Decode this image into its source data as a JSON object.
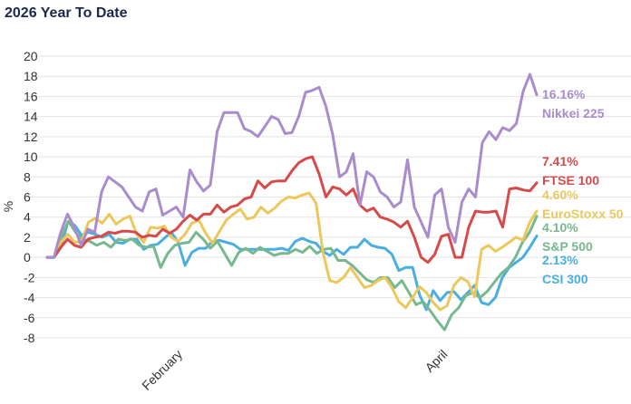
{
  "chart_data": {
    "type": "line",
    "title": "2026 Year To Date",
    "ylabel": "%",
    "xlabel": "",
    "ylim": [
      -8,
      20
    ],
    "yticks": [
      20,
      18,
      16,
      14,
      12,
      10,
      8,
      6,
      4,
      2,
      0,
      -2,
      -4,
      -6,
      -8
    ],
    "xlim": [
      0,
      72
    ],
    "xticks": [
      {
        "label": "February",
        "x": 20
      },
      {
        "label": "April",
        "x": 59
      }
    ],
    "grid": true,
    "legend_position": "right",
    "series": [
      {
        "name": "Nikkei 225",
        "last_label": "16.16%",
        "color": "#a98ccc",
        "values": [
          0.0,
          0.0,
          2.5,
          4.3,
          3.0,
          1.2,
          2.8,
          2.5,
          6.5,
          8.0,
          7.5,
          7.0,
          6.0,
          5.0,
          4.6,
          6.5,
          6.8,
          4.2,
          4.6,
          5.0,
          4.0,
          8.7,
          7.5,
          6.6,
          7.2,
          12.5,
          14.4,
          14.4,
          14.4,
          12.8,
          12.5,
          12.0,
          13.0,
          14.0,
          13.7,
          12.3,
          12.4,
          14.0,
          16.4,
          16.6,
          16.9,
          15.0,
          12.2,
          8.0,
          8.5,
          10.3,
          5.2,
          8.5,
          8.0,
          6.5,
          6.0,
          5.0,
          5.5,
          9.7,
          5.0,
          3.5,
          2.0,
          6.2,
          6.8,
          3.0,
          1.5,
          5.5,
          6.8,
          6.0,
          11.4,
          12.5,
          11.7,
          12.9,
          12.6,
          13.3,
          16.5,
          18.2,
          16.16
        ]
      },
      {
        "name": "FTSE 100",
        "last_label": "7.41%",
        "color": "#d64a4a",
        "values": [
          0.0,
          0.0,
          1.0,
          1.8,
          1.2,
          1.0,
          1.8,
          2.0,
          2.1,
          2.5,
          2.4,
          2.6,
          2.6,
          2.5,
          2.0,
          2.2,
          2.1,
          2.8,
          2.4,
          2.8,
          3.6,
          4.2,
          3.7,
          4.3,
          4.3,
          5.2,
          4.5,
          5.0,
          5.2,
          5.8,
          6.0,
          7.6,
          6.9,
          7.5,
          7.6,
          7.6,
          8.6,
          9.4,
          9.8,
          10.0,
          8.3,
          6.0,
          7.0,
          6.8,
          6.2,
          6.8,
          5.2,
          4.6,
          4.9,
          4.0,
          3.8,
          3.5,
          3.0,
          3.6,
          2.0,
          0.0,
          -0.5,
          0.3,
          2.1,
          2.3,
          0.0,
          0.0,
          3.0,
          4.6,
          4.5,
          4.5,
          4.6,
          3.0,
          6.8,
          6.9,
          6.7,
          6.6,
          7.41
        ]
      },
      {
        "name": "EuroStoxx 50",
        "last_label": "4.60%",
        "color": "#ecc85c",
        "values": [
          0.0,
          0.0,
          1.5,
          2.3,
          1.5,
          1.6,
          3.5,
          3.9,
          3.4,
          4.3,
          3.3,
          3.8,
          4.1,
          2.3,
          1.5,
          3.0,
          2.9,
          3.1,
          2.0,
          1.6,
          2.3,
          3.4,
          3.7,
          2.4,
          1.4,
          2.6,
          3.7,
          4.3,
          4.8,
          3.8,
          4.0,
          5.0,
          4.4,
          4.9,
          5.6,
          6.0,
          5.9,
          6.2,
          6.4,
          5.4,
          0.5,
          -2.3,
          -2.5,
          -2.0,
          -1.0,
          -2.0,
          -3.0,
          -2.8,
          -2.3,
          -2.0,
          -3.0,
          -4.4,
          -5.0,
          -4.0,
          -2.9,
          -3.5,
          -4.5,
          -5.2,
          -4.8,
          -2.8,
          -2.0,
          -2.4,
          -3.9,
          0.8,
          1.2,
          0.6,
          1.0,
          1.5,
          2.0,
          1.7,
          3.5,
          4.6
        ]
      },
      {
        "name": "S&P 500",
        "last_label": "4.10%",
        "color": "#78b88e",
        "values": [
          0.0,
          0.0,
          2.1,
          3.6,
          2.5,
          1.8,
          1.6,
          1.2,
          1.5,
          1.0,
          1.8,
          1.7,
          1.8,
          1.2,
          1.0,
          1.1,
          -1.0,
          0.4,
          1.2,
          1.4,
          1.5,
          2.5,
          1.8,
          0.9,
          1.6,
          0.4,
          -0.8,
          0.5,
          0.9,
          0.4,
          1.0,
          0.6,
          0.2,
          0.4,
          0.4,
          0.8,
          0.5,
          1.1,
          0.4,
          0.8,
          0.9,
          -0.3,
          -0.3,
          -0.8,
          -1.5,
          -2.2,
          -2.5,
          -2.0,
          -2.0,
          -3.0,
          -2.3,
          -3.5,
          -4.7,
          -4.4,
          -5.3,
          -6.3,
          -7.2,
          -5.7,
          -5.0,
          -3.8,
          -3.5,
          -4.0,
          -3.4,
          -2.5,
          -1.6,
          -1.0,
          0.0,
          1.5,
          2.5,
          4.1
        ]
      },
      {
        "name": "CSI 300",
        "last_label": "2.13%",
        "color": "#4aaee0",
        "values": [
          0.0,
          0.0,
          1.0,
          3.5,
          3.2,
          2.2,
          2.5,
          2.3,
          2.0,
          2.3,
          1.5,
          1.4,
          1.8,
          1.8,
          0.8,
          1.2,
          1.3,
          1.9,
          2.5,
          1.5,
          -0.8,
          0.5,
          0.9,
          0.9,
          1.6,
          1.7,
          1.5,
          1.3,
          0.8,
          0.8,
          0.8,
          0.8,
          0.8,
          0.8,
          0.9,
          0.7,
          1.6,
          1.9,
          1.6,
          1.4,
          0.6,
          0.2,
          0.8,
          0.3,
          1.0,
          1.0,
          1.8,
          1.2,
          1.0,
          0.9,
          0.3,
          -1.3,
          -1.0,
          -1.0,
          -3.7,
          -5.2,
          -3.3,
          -4.3,
          -3.5,
          -3.4,
          -4.2,
          -3.5,
          -2.8,
          -4.5,
          -4.7,
          -4.0,
          -2.0,
          -1.0,
          -0.5,
          0.0,
          1.0,
          2.13
        ]
      }
    ]
  }
}
